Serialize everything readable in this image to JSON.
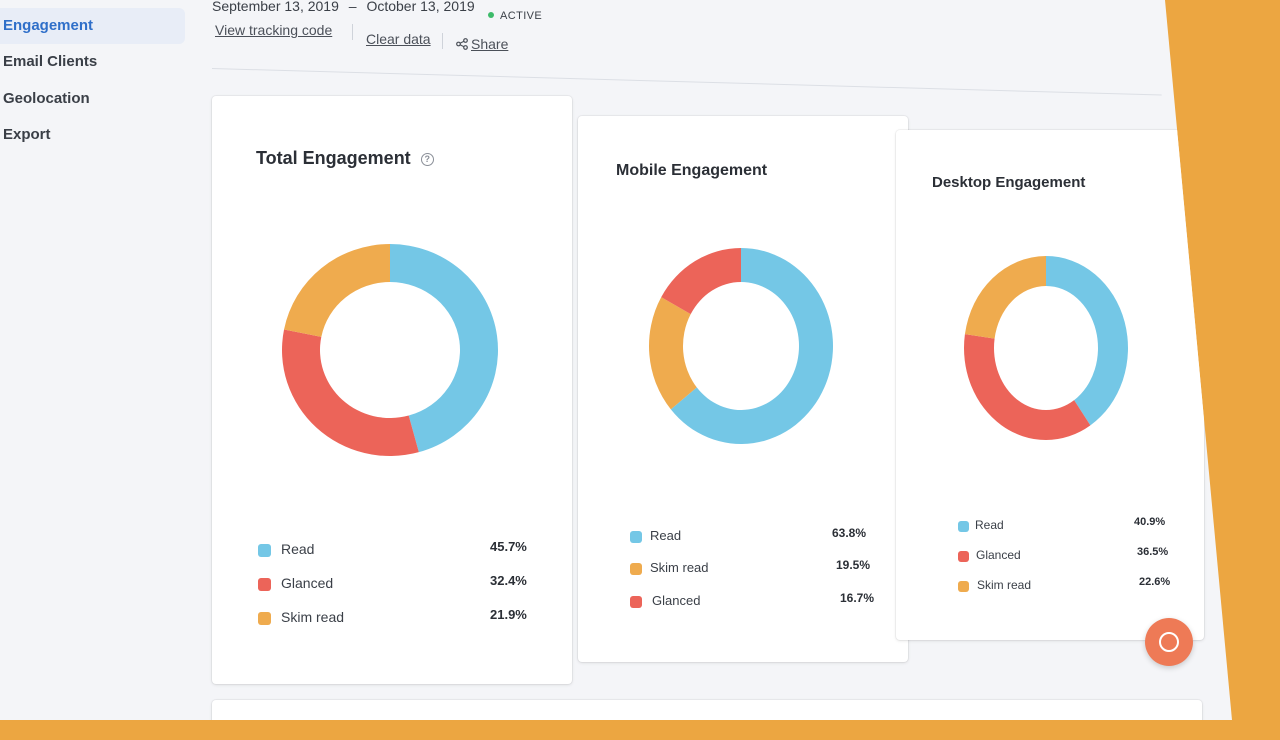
{
  "sidebar": {
    "items": [
      {
        "label": "Engagement",
        "active": true
      },
      {
        "label": "Email Clients",
        "active": false
      },
      {
        "label": "Geolocation",
        "active": false
      },
      {
        "label": "Export",
        "active": false
      }
    ]
  },
  "header": {
    "date_start": "September 13, 2019",
    "date_sep": "–",
    "date_end": "October 13, 2019",
    "status": "ACTIVE",
    "links": {
      "tracking": "View tracking code",
      "clear": "Clear data",
      "share": "Share"
    }
  },
  "colors": {
    "read": "#74c7e6",
    "glanced": "#ec6459",
    "skim": "#efab4e",
    "accent": "#2f6fc9",
    "background": "#eca641"
  },
  "cards": [
    {
      "title": "Total Engagement",
      "has_help": true,
      "legend": [
        {
          "label": "Read",
          "value": "45.7%",
          "color": "#74c7e6"
        },
        {
          "label": "Glanced",
          "value": "32.4%",
          "color": "#ec6459"
        },
        {
          "label": "Skim read",
          "value": "21.9%",
          "color": "#efab4e"
        }
      ]
    },
    {
      "title": "Mobile Engagement",
      "has_help": false,
      "legend": [
        {
          "label": "Read",
          "value": "63.8%",
          "color": "#74c7e6"
        },
        {
          "label": "Skim read",
          "value": "19.5%",
          "color": "#efab4e"
        },
        {
          "label": "Glanced",
          "value": "16.7%",
          "color": "#ec6459"
        }
      ]
    },
    {
      "title": "Desktop Engagement",
      "has_help": false,
      "legend": [
        {
          "label": "Read",
          "value": "40.9%",
          "color": "#74c7e6"
        },
        {
          "label": "Glanced",
          "value": "36.5%",
          "color": "#ec6459"
        },
        {
          "label": "Skim read",
          "value": "22.6%",
          "color": "#efab4e"
        }
      ]
    }
  ],
  "chart_data": [
    {
      "type": "pie",
      "title": "Total Engagement",
      "categories": [
        "Read",
        "Glanced",
        "Skim read"
      ],
      "values": [
        45.7,
        32.4,
        21.9
      ],
      "colors": [
        "#74c7e6",
        "#ec6459",
        "#efab4e"
      ]
    },
    {
      "type": "pie",
      "title": "Mobile Engagement",
      "categories": [
        "Read",
        "Skim read",
        "Glanced"
      ],
      "values": [
        63.8,
        19.5,
        16.7
      ],
      "colors": [
        "#74c7e6",
        "#efab4e",
        "#ec6459"
      ]
    },
    {
      "type": "pie",
      "title": "Desktop Engagement",
      "categories": [
        "Read",
        "Glanced",
        "Skim read"
      ],
      "values": [
        40.9,
        36.5,
        22.6
      ],
      "colors": [
        "#74c7e6",
        "#ec6459",
        "#efab4e"
      ]
    }
  ],
  "chat": {
    "icon": "chat-icon"
  }
}
